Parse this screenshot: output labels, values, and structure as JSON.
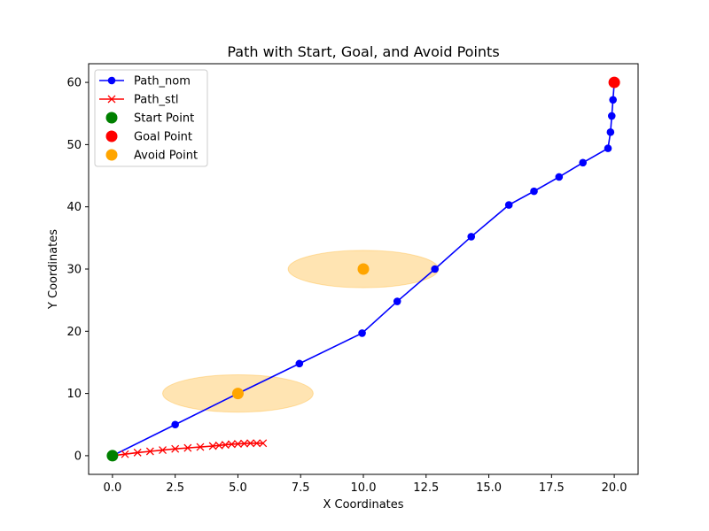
{
  "chart_data": {
    "type": "line",
    "title": "Path with Start, Goal, and Avoid Points",
    "xlabel": "X Coordinates",
    "ylabel": "Y Coordinates",
    "xlim": [
      -0.95,
      20.95
    ],
    "ylim": [
      -3,
      63
    ],
    "xticks": [
      0,
      2.5,
      5,
      7.5,
      10,
      12.5,
      15,
      17.5,
      20
    ],
    "xtick_labels": [
      "0.0",
      "2.5",
      "5.0",
      "7.5",
      "10.0",
      "12.5",
      "15.0",
      "17.5",
      "20.0"
    ],
    "yticks": [
      0,
      10,
      20,
      30,
      40,
      50,
      60
    ],
    "ytick_labels": [
      "0",
      "10",
      "20",
      "30",
      "40",
      "50",
      "60"
    ],
    "grid": false,
    "legend_position": "top-left",
    "series": [
      {
        "name": "Path_nom",
        "color": "#0000ff",
        "marker": "circle",
        "x": [
          0,
          2.5,
          5,
          7.45,
          9.95,
          11.35,
          12.85,
          14.3,
          15.8,
          16.8,
          17.8,
          18.75,
          19.75,
          19.85,
          19.9,
          19.95,
          20.0
        ],
        "y": [
          0,
          5,
          10,
          14.8,
          19.7,
          24.8,
          30,
          35.2,
          40.3,
          42.5,
          44.8,
          47.1,
          49.4,
          52,
          54.6,
          57.2,
          60
        ]
      },
      {
        "name": "Path_stl",
        "color": "#ff0000",
        "marker": "x",
        "x": [
          0,
          0.5,
          1.0,
          1.5,
          2.0,
          2.5,
          3.0,
          3.5,
          4.0,
          4.25,
          4.5,
          4.75,
          5.0,
          5.25,
          5.5,
          5.75,
          6.0
        ],
        "y": [
          0,
          0.25,
          0.5,
          0.7,
          0.9,
          1.1,
          1.25,
          1.4,
          1.55,
          1.65,
          1.75,
          1.85,
          1.9,
          1.95,
          2.0,
          2.0,
          2.0
        ]
      }
    ],
    "points": [
      {
        "name": "Start Point",
        "color": "#008000",
        "x": 0,
        "y": 0
      },
      {
        "name": "Goal Point",
        "color": "#ff0000",
        "x": 20,
        "y": 60
      },
      {
        "name": "Avoid Point",
        "color": "#ffa500",
        "x": [
          5,
          10
        ],
        "y": [
          10,
          30
        ]
      }
    ],
    "avoid_regions": [
      {
        "cx": 5,
        "cy": 10,
        "rx": 3,
        "ry": 3,
        "color": "#ffa500",
        "opacity": 0.3
      },
      {
        "cx": 10,
        "cy": 30,
        "rx": 3,
        "ry": 3,
        "color": "#ffa500",
        "opacity": 0.3
      }
    ]
  }
}
